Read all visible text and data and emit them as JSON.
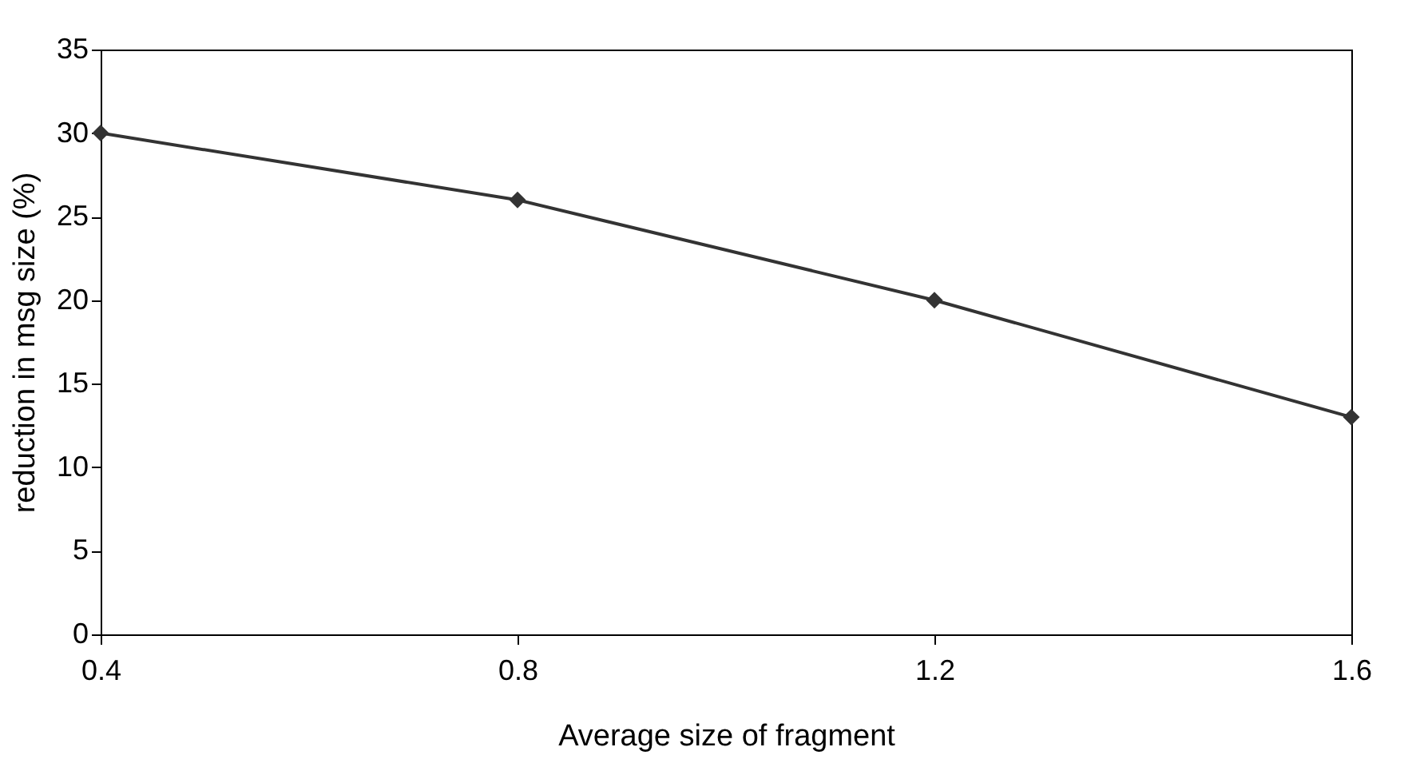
{
  "chart_data": {
    "type": "line",
    "xlabel": "Average size of fragment",
    "ylabel": "reduction in msg size (%)",
    "x": [
      0.4,
      0.8,
      1.2,
      1.6
    ],
    "series": [
      {
        "color": "#333333",
        "values": [
          30,
          26,
          20,
          13
        ]
      }
    ],
    "xlim": [
      0.4,
      1.6
    ],
    "xticks": [
      0.4,
      0.8,
      1.2,
      1.6
    ],
    "ylim": [
      0,
      35
    ],
    "yticks": [
      0,
      5,
      10,
      15,
      20,
      25,
      30,
      35
    ],
    "grid": false,
    "marker": "diamond",
    "line_style": "solid"
  }
}
